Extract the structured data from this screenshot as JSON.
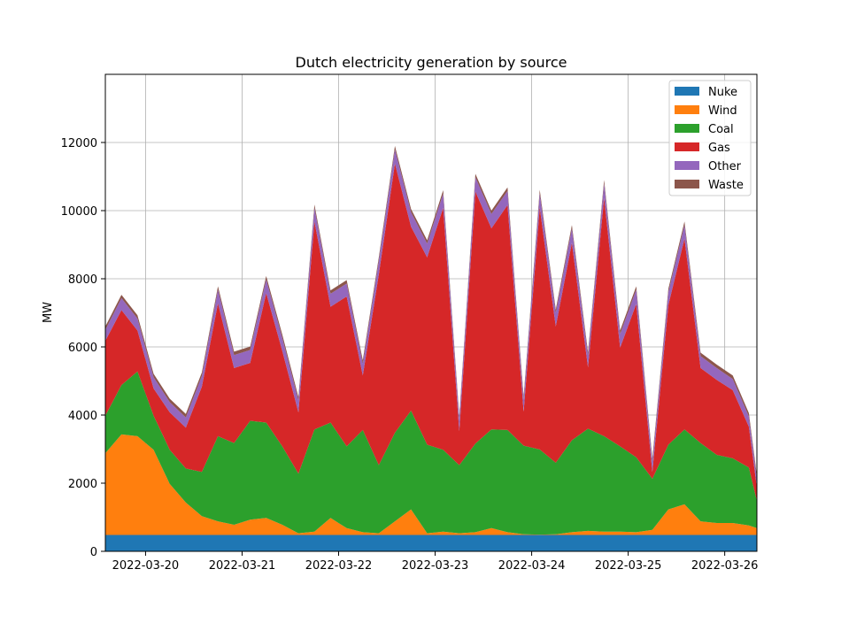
{
  "chart_data": {
    "type": "area",
    "stacked": true,
    "title": "Dutch electricity generation by source",
    "xlabel": "",
    "ylabel": "MW",
    "xlim": [
      "2022-03-19 14:00",
      "2022-03-26 08:00"
    ],
    "ylim": [
      0,
      14000
    ],
    "x_ticks": [
      "2022-03-20",
      "2022-03-21",
      "2022-03-22",
      "2022-03-23",
      "2022-03-24",
      "2022-03-25",
      "2022-03-26"
    ],
    "y_ticks": [
      0,
      2000,
      4000,
      6000,
      8000,
      10000,
      12000
    ],
    "grid": true,
    "legend_position": "top-right",
    "x": [
      "2022-03-19 14:00",
      "2022-03-19 18:00",
      "2022-03-19 22:00",
      "2022-03-20 02:00",
      "2022-03-20 06:00",
      "2022-03-20 10:00",
      "2022-03-20 14:00",
      "2022-03-20 18:00",
      "2022-03-20 22:00",
      "2022-03-21 02:00",
      "2022-03-21 06:00",
      "2022-03-21 10:00",
      "2022-03-21 14:00",
      "2022-03-21 18:00",
      "2022-03-21 22:00",
      "2022-03-22 02:00",
      "2022-03-22 06:00",
      "2022-03-22 10:00",
      "2022-03-22 14:00",
      "2022-03-22 18:00",
      "2022-03-22 22:00",
      "2022-03-23 02:00",
      "2022-03-23 06:00",
      "2022-03-23 10:00",
      "2022-03-23 14:00",
      "2022-03-23 18:00",
      "2022-03-23 22:00",
      "2022-03-24 02:00",
      "2022-03-24 06:00",
      "2022-03-24 10:00",
      "2022-03-24 14:00",
      "2022-03-24 18:00",
      "2022-03-24 22:00",
      "2022-03-25 02:00",
      "2022-03-25 06:00",
      "2022-03-25 10:00",
      "2022-03-25 14:00",
      "2022-03-25 18:00",
      "2022-03-25 22:00",
      "2022-03-26 02:00",
      "2022-03-26 06:00",
      "2022-03-26 08:00"
    ],
    "series": [
      {
        "name": "Nuke",
        "color": "#1f77b4",
        "values": [
          480,
          480,
          480,
          480,
          480,
          480,
          480,
          480,
          480,
          480,
          480,
          480,
          480,
          480,
          480,
          480,
          480,
          480,
          480,
          480,
          480,
          480,
          480,
          480,
          480,
          480,
          480,
          480,
          480,
          480,
          480,
          480,
          480,
          480,
          480,
          480,
          480,
          480,
          480,
          480,
          480,
          480
        ]
      },
      {
        "name": "Wind",
        "color": "#ff7f0e",
        "values": [
          2400,
          2950,
          2900,
          2500,
          1500,
          950,
          550,
          400,
          300,
          450,
          500,
          300,
          50,
          100,
          500,
          200,
          80,
          50,
          400,
          750,
          50,
          100,
          50,
          80,
          200,
          80,
          20,
          10,
          20,
          80,
          120,
          100,
          100,
          80,
          150,
          750,
          900,
          400,
          350,
          350,
          280,
          200
        ]
      },
      {
        "name": "Coal",
        "color": "#2ca02c",
        "values": [
          1100,
          1450,
          1900,
          1000,
          1000,
          1000,
          1300,
          2500,
          2400,
          2900,
          2800,
          2300,
          1750,
          3000,
          2800,
          2400,
          3000,
          2000,
          2600,
          2900,
          2600,
          2400,
          2000,
          2600,
          2900,
          3000,
          2600,
          2500,
          2100,
          2700,
          3000,
          2800,
          2500,
          2200,
          1500,
          1900,
          2200,
          2300,
          2000,
          1900,
          1700,
          800
        ]
      },
      {
        "name": "Gas",
        "color": "#d62728",
        "values": [
          2200,
          2200,
          1200,
          800,
          1100,
          1200,
          2500,
          3900,
          2200,
          1700,
          3800,
          2800,
          1800,
          6100,
          3400,
          4400,
          1600,
          5600,
          7900,
          5400,
          5500,
          7100,
          1000,
          7400,
          5900,
          6600,
          1000,
          7100,
          4000,
          5800,
          1800,
          7000,
          2900,
          4500,
          200,
          4100,
          5600,
          2200,
          2200,
          2000,
          1200,
          400
        ]
      },
      {
        "name": "Other",
        "color": "#9467bd",
        "values": [
          320,
          350,
          350,
          330,
          300,
          300,
          320,
          400,
          380,
          380,
          400,
          380,
          350,
          400,
          380,
          380,
          350,
          400,
          420,
          420,
          400,
          420,
          350,
          420,
          420,
          420,
          350,
          420,
          400,
          420,
          350,
          420,
          400,
          420,
          300,
          380,
          400,
          350,
          350,
          330,
          300,
          250
        ]
      },
      {
        "name": "Waste",
        "color": "#8c564b",
        "values": [
          100,
          100,
          100,
          100,
          100,
          100,
          100,
          100,
          100,
          100,
          100,
          100,
          100,
          100,
          100,
          100,
          100,
          100,
          100,
          100,
          100,
          100,
          100,
          100,
          100,
          100,
          100,
          100,
          100,
          100,
          100,
          100,
          100,
          100,
          100,
          100,
          100,
          100,
          100,
          100,
          100,
          100
        ]
      }
    ]
  }
}
